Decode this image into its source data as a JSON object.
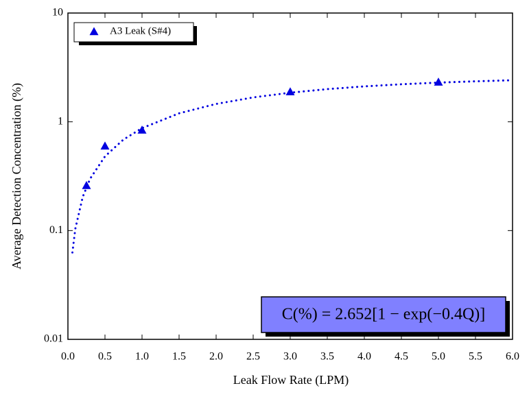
{
  "chart_data": {
    "type": "scatter",
    "x_label": "Leak Flow Rate (LPM)",
    "y_label": "Average Detection Concentration (%)",
    "series": [
      {
        "name": "A3 Leak (S#4)",
        "color": "#0000e0",
        "x": [
          0.25,
          0.5,
          1.0,
          3.0,
          5.0
        ],
        "values": [
          0.26,
          0.6,
          0.84,
          1.89,
          2.32
        ]
      }
    ],
    "fit": {
      "color": "#0000e0",
      "x": [
        0.06,
        0.1,
        0.2,
        0.3,
        0.5,
        0.75,
        1,
        1.5,
        2,
        2.5,
        3,
        3.5,
        4,
        4.5,
        5,
        5.5,
        6
      ],
      "values": [
        0.0629,
        0.104,
        0.204,
        0.3,
        0.481,
        0.687,
        0.874,
        1.197,
        1.46,
        1.676,
        1.853,
        1.998,
        2.117,
        2.214,
        2.293,
        2.358,
        2.411
      ]
    },
    "annotation": "C(%) = 2.652[1 − exp(−0.4Q)]",
    "xlim": [
      0,
      6
    ],
    "xticks": [
      {
        "value": 0,
        "label": "0.0"
      },
      0.5,
      {
        "value": 1,
        "label": "1.0"
      },
      1.5,
      {
        "value": 2,
        "label": "2.0"
      },
      2.5,
      {
        "value": 3,
        "label": "3.0"
      },
      3.5,
      {
        "value": 4,
        "label": "4.0"
      },
      4.5,
      {
        "value": 5,
        "label": "5.0"
      },
      5.5,
      {
        "value": 6,
        "label": "6.0"
      }
    ],
    "ylim": [
      0.01,
      10
    ],
    "yticks": [
      0.01,
      0.1,
      1,
      10
    ],
    "log_y": true,
    "legend": "upper left",
    "annotation_color": "#8080ff"
  }
}
